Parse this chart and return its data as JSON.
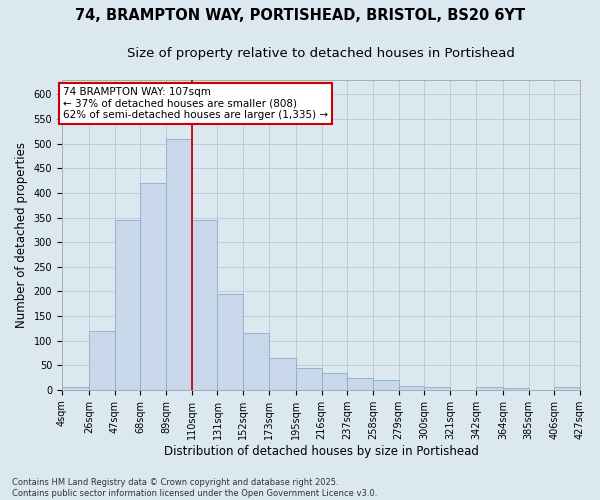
{
  "title_line1": "74, BRAMPTON WAY, PORTISHEAD, BRISTOL, BS20 6YT",
  "title_line2": "Size of property relative to detached houses in Portishead",
  "xlabel": "Distribution of detached houses by size in Portishead",
  "ylabel": "Number of detached properties",
  "footer_line1": "Contains HM Land Registry data © Crown copyright and database right 2025.",
  "footer_line2": "Contains public sector information licensed under the Open Government Licence v3.0.",
  "bar_color": "#c8d8ea",
  "bar_edge_color": "#8aafc8",
  "grid_color": "#b8c8d8",
  "background_color": "#dce8f0",
  "fig_background": "#dce8f0",
  "vline_x": 110,
  "vline_color": "#cc0000",
  "annotation_text": "74 BRAMPTON WAY: 107sqm\n← 37% of detached houses are smaller (808)\n62% of semi-detached houses are larger (1,335) →",
  "annotation_box_color": "#ffffff",
  "annotation_border_color": "#cc0000",
  "bins": [
    4,
    26,
    47,
    68,
    89,
    110,
    131,
    152,
    173,
    195,
    216,
    237,
    258,
    279,
    300,
    321,
    342,
    364,
    385,
    406,
    427
  ],
  "values": [
    5,
    120,
    345,
    420,
    510,
    345,
    195,
    115,
    65,
    45,
    35,
    25,
    20,
    8,
    5,
    0,
    5,
    3,
    0,
    5
  ],
  "ylim": [
    0,
    630
  ],
  "yticks": [
    0,
    50,
    100,
    150,
    200,
    250,
    300,
    350,
    400,
    450,
    500,
    550,
    600
  ],
  "title_fontsize": 10.5,
  "subtitle_fontsize": 9.5,
  "axis_label_fontsize": 8.5,
  "tick_fontsize": 7,
  "annotation_fontsize": 7.5,
  "footer_fontsize": 6
}
